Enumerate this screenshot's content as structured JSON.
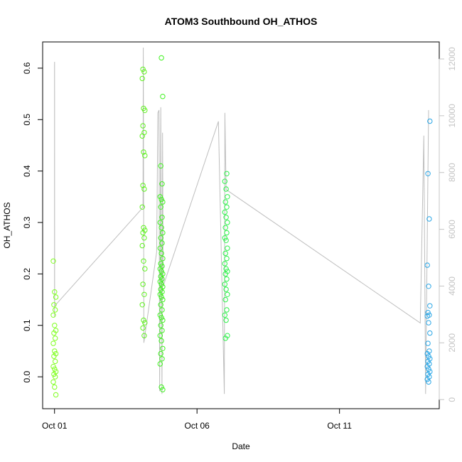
{
  "chart_data": {
    "type": "scatter",
    "title": "ATOM3 Southbound OH_ATHOS",
    "xlabel": "Date",
    "ylabel": "OH_ATHOS",
    "x_ticks": [
      "Oct 01",
      "Oct 06",
      "Oct 11"
    ],
    "y_ticks": [
      "0.0",
      "0.1",
      "0.2",
      "0.3",
      "0.4",
      "0.5",
      "0.6"
    ],
    "y2_ticks": [
      "0",
      "2000",
      "4000",
      "6000",
      "8000",
      "10000",
      "12000"
    ],
    "xlim": [
      "2017-09-30T14:00",
      "2017-10-14T12:00"
    ],
    "ylim": [
      -0.062,
      0.651
    ],
    "y2lim": [
      -320,
      12600
    ],
    "grid": false,
    "legend": "none",
    "colors": {
      "point_green": "#66ff22",
      "point_blue": "#2aa6e6",
      "altitude_line": "#bebebe",
      "right_axis": "#c4c4c4"
    },
    "series": [
      {
        "kind": "points",
        "groups": [
          {
            "x": "2017-10-01T00:02",
            "color": "#7fff1f",
            "y": [
              0.225,
              0.165,
              0.155,
              0.14,
              0.13,
              0.12,
              0.1,
              0.09,
              0.085,
              0.075,
              0.065,
              0.05,
              0.045,
              0.04,
              0.03,
              0.02,
              0.015,
              0.01,
              0.005,
              0.0,
              -0.01,
              -0.02,
              -0.035
            ]
          },
          {
            "x": "2017-10-04T03:00",
            "color": "#5ff21f",
            "y": [
              0.598,
              0.593,
              0.58,
              0.522,
              0.518,
              0.488,
              0.475,
              0.468,
              0.437,
              0.43,
              0.372,
              0.365,
              0.33,
              0.29,
              0.285,
              0.28,
              0.27,
              0.255,
              0.225,
              0.21,
              0.18,
              0.16,
              0.14,
              0.11,
              0.105,
              0.095,
              0.08
            ]
          },
          {
            "x": "2017-10-04T18:00",
            "color": "#3ff21f",
            "y": [
              0.62,
              0.545,
              0.41,
              0.375,
              0.35,
              0.345,
              0.34,
              0.33,
              0.31,
              0.3,
              0.29,
              0.28,
              0.27,
              0.26,
              0.25,
              0.24,
              0.23,
              0.22,
              0.215,
              0.21,
              0.205,
              0.2,
              0.195,
              0.19,
              0.185,
              0.18,
              0.175,
              0.17,
              0.165,
              0.16,
              0.155,
              0.15,
              0.14,
              0.13,
              0.12,
              0.115,
              0.11,
              0.1,
              0.09,
              0.08,
              0.07,
              0.055,
              0.045,
              0.035,
              0.025,
              -0.02,
              -0.025
            ]
          },
          {
            "x": "2017-10-07T00:30",
            "color": "#2ef24a",
            "y": [
              0.395,
              0.38,
              0.365,
              0.35,
              0.34,
              0.33,
              0.32,
              0.31,
              0.3,
              0.29,
              0.28,
              0.27,
              0.265,
              0.25,
              0.24,
              0.23,
              0.22,
              0.21,
              0.205,
              0.2,
              0.19,
              0.18,
              0.17,
              0.16,
              0.15,
              0.13,
              0.12,
              0.11,
              0.08,
              0.075
            ]
          },
          {
            "x": "2017-10-14T03:00",
            "color": "#2aa6e6",
            "y": [
              0.497,
              0.395,
              0.307,
              0.217,
              0.176,
              0.138,
              0.125,
              0.12,
              0.118,
              0.105,
              0.085,
              0.065,
              0.05,
              0.045,
              0.04,
              0.035,
              0.03,
              0.025,
              0.02,
              0.015,
              0.01,
              0.005,
              0.0,
              -0.005,
              -0.01
            ]
          }
        ]
      },
      {
        "kind": "line",
        "axis": "right",
        "color": "#bebebe",
        "points": [
          [
            "2017-10-01T00:00",
            2900
          ],
          [
            "2017-10-01T00:01",
            11800
          ],
          [
            "2017-10-01T00:04",
            11900
          ],
          [
            "2017-10-01T00:06",
            3300
          ],
          [
            "2017-10-04T01:00",
            6700
          ],
          [
            "2017-10-04T02:30",
            6800
          ],
          [
            "2017-10-04T02:45",
            12400
          ],
          [
            "2017-10-04T03:05",
            6900
          ],
          [
            "2017-10-04T03:15",
            2000
          ],
          [
            "2017-10-04T14:00",
            5200
          ],
          [
            "2017-10-04T15:00",
            10100
          ],
          [
            "2017-10-04T16:00",
            10200
          ],
          [
            "2017-10-04T16:30",
            300
          ],
          [
            "2017-10-04T17:30",
            10300
          ],
          [
            "2017-10-04T18:30",
            200
          ],
          [
            "2017-10-04T19:00",
            9400
          ],
          [
            "2017-10-04T19:30",
            4000
          ],
          [
            "2017-10-06T18:00",
            9800
          ],
          [
            "2017-10-06T23:00",
            200
          ],
          [
            "2017-10-06T23:30",
            10100
          ],
          [
            "2017-10-07T00:30",
            7400
          ],
          [
            "2017-10-13T20:00",
            2700
          ],
          [
            "2017-10-13T23:00",
            9300
          ],
          [
            "2017-10-14T00:30",
            200
          ],
          [
            "2017-10-14T03:00",
            10200
          ]
        ]
      }
    ]
  }
}
